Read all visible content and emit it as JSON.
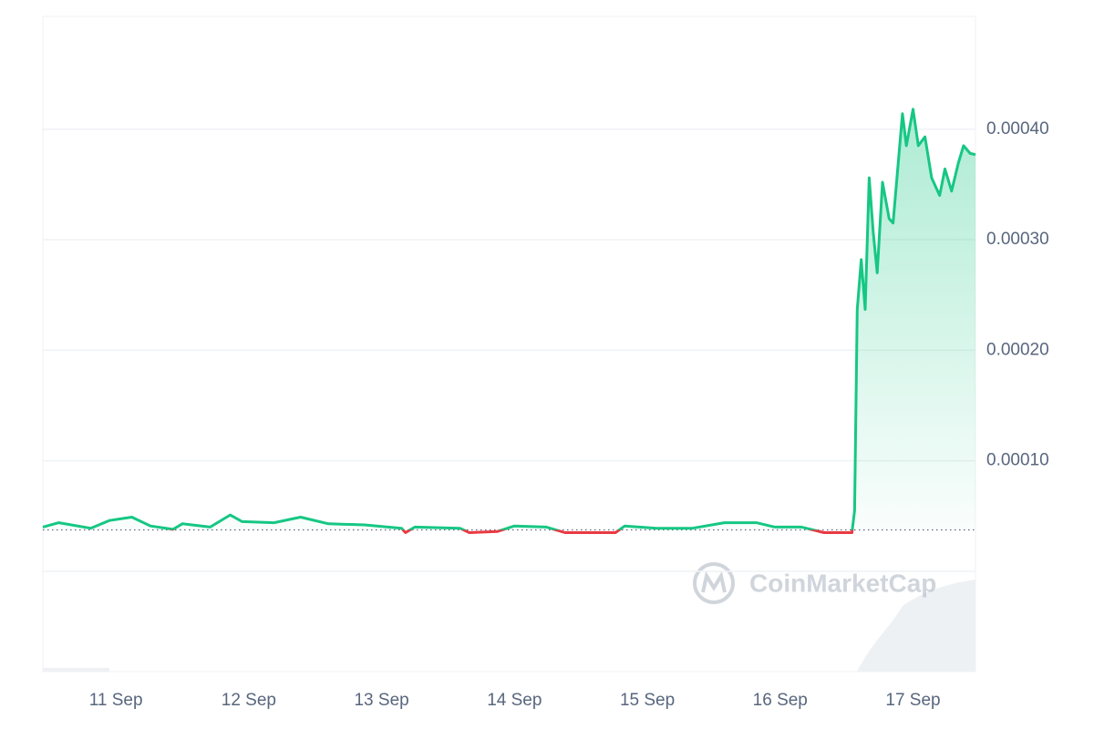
{
  "chart_data": {
    "type": "line",
    "x": [
      10.45,
      10.57,
      10.81,
      10.95,
      11.12,
      11.26,
      11.43,
      11.5,
      11.71,
      11.86,
      11.95,
      12.19,
      12.39,
      12.6,
      12.87,
      13.15,
      13.18,
      13.25,
      13.59,
      13.66,
      13.87,
      14.0,
      14.24,
      14.38,
      14.59,
      14.76,
      14.83,
      15.07,
      15.34,
      15.58,
      15.82,
      15.96,
      16.16,
      16.33,
      16.54,
      16.56,
      16.58,
      16.61,
      16.64,
      16.67,
      16.7,
      16.73,
      16.77,
      16.82,
      16.85,
      16.92,
      16.95,
      17.0,
      17.04,
      17.09,
      17.14,
      17.2,
      17.24,
      17.29,
      17.34,
      17.38,
      17.43,
      17.47
    ],
    "series": [
      {
        "color": "#16c784",
        "down_color": "#ea3943",
        "values": [
          4e-05,
          4.4e-05,
          3.9e-05,
          4.6e-05,
          4.9e-05,
          4.1e-05,
          3.8e-05,
          4.3e-05,
          4e-05,
          5.1e-05,
          4.5e-05,
          4.4e-05,
          4.9e-05,
          4.3e-05,
          4.2e-05,
          3.9e-05,
          3.5e-05,
          4e-05,
          3.9e-05,
          3.5e-05,
          3.6e-05,
          4.1e-05,
          4e-05,
          3.5e-05,
          3.5e-05,
          3.5e-05,
          4.1e-05,
          3.9e-05,
          3.9e-05,
          4.4e-05,
          4.4e-05,
          4e-05,
          4e-05,
          3.5e-05,
          3.5e-05,
          5.5e-05,
          0.000237,
          0.000282,
          0.000237,
          0.000356,
          0.000307,
          0.00027,
          0.000352,
          0.000319,
          0.000315,
          0.000414,
          0.000385,
          0.000418,
          0.000385,
          0.000393,
          0.000356,
          0.00034,
          0.000364,
          0.000344,
          0.000369,
          0.000385,
          0.000378,
          0.000377
        ]
      }
    ],
    "baseline": 3.75e-05,
    "xlim": [
      10.45,
      17.47
    ],
    "xticks": [
      {
        "value": 11,
        "label": "11 Sep"
      },
      {
        "value": 12,
        "label": "12 Sep"
      },
      {
        "value": 13,
        "label": "13 Sep"
      },
      {
        "value": 14,
        "label": "14 Sep"
      },
      {
        "value": 15,
        "label": "15 Sep"
      },
      {
        "value": 16,
        "label": "16 Sep"
      },
      {
        "value": 17,
        "label": "17 Sep"
      }
    ],
    "ylim": [
      -9.07e-05,
      0.000502
    ],
    "yticks": [
      {
        "value": 0,
        "label": null
      },
      {
        "value": 0.0001,
        "label": "0.00010"
      },
      {
        "value": 0.0002,
        "label": "0.00020"
      },
      {
        "value": 0.0003,
        "label": "0.00030"
      },
      {
        "value": 0.0004,
        "label": "0.00040"
      }
    ],
    "grid": true,
    "watermark": "CoinMarketCap"
  }
}
